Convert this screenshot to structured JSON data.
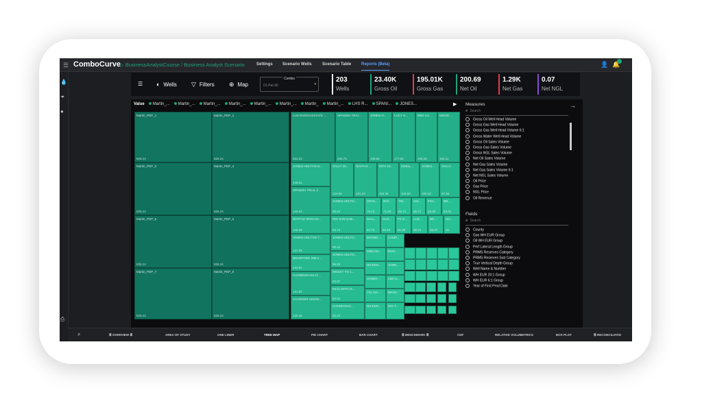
{
  "app": {
    "brand": "ComboCurve",
    "breadcrumb": "▷ BusinessAnalystCourse / Business Analyst Scenario",
    "nav": [
      {
        "label": "Settings"
      },
      {
        "label": "Scenario Wells"
      },
      {
        "label": "Scenario Table"
      },
      {
        "label": "Reports (Beta)",
        "active": true
      }
    ]
  },
  "colors": {
    "accent": "#1ea47a",
    "active_tab": "#5aa0ff",
    "teal_dark": "#0f6f5b",
    "teal_light": "#2ac79a"
  },
  "toolbar": {
    "menu_icon": "list-icon",
    "wells_label": "Wells",
    "filters_label": "Filters",
    "map_label": "Map",
    "combo_label": "Combo",
    "combo_value": "01-Pat 90"
  },
  "kpis": [
    {
      "value": "203",
      "label": "Wells",
      "color": "#ffffff"
    },
    {
      "value": "23.40K",
      "label": "Gross Oil",
      "color": "#1ea47a"
    },
    {
      "value": "195.01K",
      "label": "Gross Gas",
      "color": "#e0404a"
    },
    {
      "value": "200.69",
      "label": "Net Oil",
      "color": "#1ea47a"
    },
    {
      "value": "1.29K",
      "label": "Net Gas",
      "color": "#e0404a"
    },
    {
      "value": "0.07",
      "label": "Net NGL",
      "color": "#8a4fd8"
    }
  ],
  "legend": {
    "title": "Value",
    "items": [
      "Martin_...",
      "Martin_...",
      "Martin_...",
      "Martin_...",
      "Martin_...",
      "Martin_...",
      "Martin_",
      "Martin_...",
      "LHS R...",
      "SPANI...",
      "JONES..."
    ]
  },
  "treemap": {
    "cells": [
      {
        "name": "Martin_PDP_1",
        "value": "828.24"
      },
      {
        "name": "Martin_PDP_2",
        "value": "828.24"
      },
      {
        "name": "LHS RANCH ESTATE ...",
        "value": "262.53"
      },
      {
        "name": "SPANISH TRAI...",
        "value": "258.75"
      },
      {
        "name": "JONES-H...",
        "value": "188.85"
      },
      {
        "name": "LUCY H...",
        "value": "177.82"
      },
      {
        "name": "BRD CA...",
        "value": "166.55"
      },
      {
        "name": "MOOD...",
        "value": "160.11"
      },
      {
        "name": "Martin_PDP_3",
        "value": "828.24"
      },
      {
        "name": "Martin_PDP_4",
        "value": "828.24"
      },
      {
        "name": "JONES-HOLTON B...",
        "value": "148.63"
      },
      {
        "name": "SALLY 26...",
        "value": "124.08"
      },
      {
        "name": "WAFFLE ...",
        "value": "121.23"
      },
      {
        "name": "WTH 10...",
        "value": "118.36"
      },
      {
        "name": "ODELL ...",
        "value": "103.59"
      },
      {
        "name": "JONES...",
        "value": "100.18"
      },
      {
        "name": "SALLY...",
        "value": "97.58"
      },
      {
        "name": "SPANISH TRAIL 4...",
        "value": "148.63"
      },
      {
        "name": "JONES-HOLTO...",
        "value": "98.54"
      },
      {
        "name": "SPAN...",
        "value": "76.14"
      },
      {
        "name": "RIO...",
        "value": "71.58"
      },
      {
        "name": "TRI...",
        "value": "66.71"
      },
      {
        "name": "CM...",
        "value": "65.71"
      },
      {
        "name": "FRA...",
        "value": "64.69"
      },
      {
        "name": "BR...",
        "value": "63.41"
      },
      {
        "name": "Martin_PDP_5",
        "value": "828.24"
      },
      {
        "name": "Martin_PDP_6",
        "value": "828.24"
      },
      {
        "name": "WAFFLE IRON H2...",
        "value": "148.29"
      },
      {
        "name": "RIO SAN GAB...",
        "value": "94.72"
      },
      {
        "name": "SALL...",
        "value": "82.73"
      },
      {
        "name": "CUN...",
        "value": "82.63"
      },
      {
        "name": "FC E...",
        "value": "81.88"
      },
      {
        "name": "LHS...",
        "value": "80.71"
      },
      {
        "name": "BR...",
        "value": "48.07"
      },
      {
        "name": "HO...",
        "value": "45"
      },
      {
        "name": "JONES-HOLTON 7...",
        "value": "137.39"
      },
      {
        "name": "JONES-HOLTO...",
        "value": "90.42"
      },
      {
        "name": "BOONE-...",
        "value": ""
      },
      {
        "name": "CAMP...",
        "value": ""
      },
      {
        "name": "Martin_PDP_7",
        "value": "828.24"
      },
      {
        "name": "Martin_PDP_8",
        "value": "828.24"
      },
      {
        "name": "BRADFORD 25B 2...",
        "value": "132.92"
      },
      {
        "name": "JONES-HOLTO...",
        "value": "89.89"
      },
      {
        "name": "MIDLAN...",
        "value": ""
      },
      {
        "name": "BOO...",
        "value": ""
      },
      {
        "name": "MOSSY YO 1...",
        "value": "83.97"
      },
      {
        "name": "DICKEN...",
        "value": ""
      },
      {
        "name": "JONE...",
        "value": ""
      },
      {
        "name": "CUNNINGHAM 37...",
        "value": "131.82"
      },
      {
        "name": "MCCLINTIC-E...",
        "value": "82.61"
      },
      {
        "name": "JONES-...",
        "value": ""
      },
      {
        "name": "LBS U...",
        "value": ""
      },
      {
        "name": "TXL-SH...",
        "value": ""
      },
      {
        "name": "FRAN...",
        "value": ""
      },
      {
        "name": "CHARGER HISSW...",
        "value": "129.38"
      },
      {
        "name": "CUNNINGHA...",
        "value": "82.22"
      },
      {
        "name": "DICKEN...",
        "value": ""
      },
      {
        "name": "BRAD...",
        "value": ""
      },
      {
        "name": "RIO T...",
        "value": ""
      }
    ]
  },
  "measures": {
    "title": "Measures",
    "search_placeholder": "Search",
    "items": [
      "Gross Oil Well Head Volume",
      "Gross Gas Well Head Volume",
      "Gross Gas Well Head Volume 6:1",
      "Gross Water Well Head Volume",
      "Gross Oil Sales Volume",
      "Gross Gas Sales Volume",
      "Gross NGL Sales Volume",
      "Net Oil Sales Volume",
      "Net Gas Sales Volume",
      "Net Gas Sales Volume 6:1",
      "Net NGL Sales Volume",
      "Oil Price",
      "Gas Price",
      "NGL Price",
      "Oil Revenue"
    ]
  },
  "fields": {
    "title": "Fields",
    "search_placeholder": "Search",
    "items": [
      "County",
      "Gas WH EUR Group",
      "Oil WH EUR Group",
      "Perf Lateral Length Group",
      "PRMS Reserves Category",
      "PRMS Reserves Sub Category",
      "True Vertical Depth Group",
      "Well Name & Number",
      "WH EUR 20:1 Group",
      "WH EUR 6:1 Group",
      "Year of First Prod Date"
    ]
  },
  "bottom_tabs": [
    "≣ OVERVIEW ≣",
    "AREA OF STUDY",
    "ONE LINER",
    "TREE MAP",
    "PIE CHART",
    "BAR CHART",
    "≣ BENCHMARK ≣",
    "CDF",
    "RELATIVE VOLUMETRICS",
    "BOX PLOT",
    "≣ RECONCILIATIO"
  ],
  "bottom_active": "TREE MAP"
}
